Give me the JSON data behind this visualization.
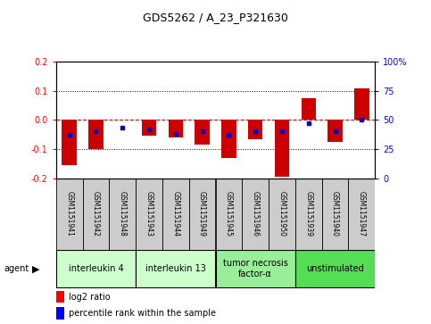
{
  "title": "GDS5262 / A_23_P321630",
  "samples": [
    "GSM1151941",
    "GSM1151942",
    "GSM1151948",
    "GSM1151943",
    "GSM1151944",
    "GSM1151949",
    "GSM1151945",
    "GSM1151946",
    "GSM1151950",
    "GSM1151939",
    "GSM1151940",
    "GSM1151947"
  ],
  "log2_ratio": [
    -0.155,
    -0.1,
    0.002,
    -0.055,
    -0.06,
    -0.085,
    -0.13,
    -0.065,
    -0.195,
    0.075,
    -0.075,
    0.108
  ],
  "percentile": [
    37,
    40,
    43,
    42,
    38,
    40,
    37,
    40,
    40,
    47,
    40,
    50
  ],
  "agents": [
    {
      "label": "interleukin 4",
      "start": 0,
      "end": 3,
      "color": "#ccffcc"
    },
    {
      "label": "interleukin 13",
      "start": 3,
      "end": 6,
      "color": "#ccffcc"
    },
    {
      "label": "tumor necrosis\nfactor-α",
      "start": 6,
      "end": 9,
      "color": "#99ee99"
    },
    {
      "label": "unstimulated",
      "start": 9,
      "end": 12,
      "color": "#55dd55"
    }
  ],
  "ylim": [
    -0.2,
    0.2
  ],
  "yticks_left": [
    -0.2,
    -0.1,
    0.0,
    0.1,
    0.2
  ],
  "yticks_right": [
    0,
    25,
    50,
    75,
    100
  ],
  "bar_color": "#cc0000",
  "dot_color": "#0000cc",
  "zero_line_color": "#cc0000",
  "grid_color": "#000000",
  "bg_color": "#ffffff",
  "plot_bg": "#ffffff",
  "sample_bg": "#cccccc",
  "agent_label": "agent"
}
